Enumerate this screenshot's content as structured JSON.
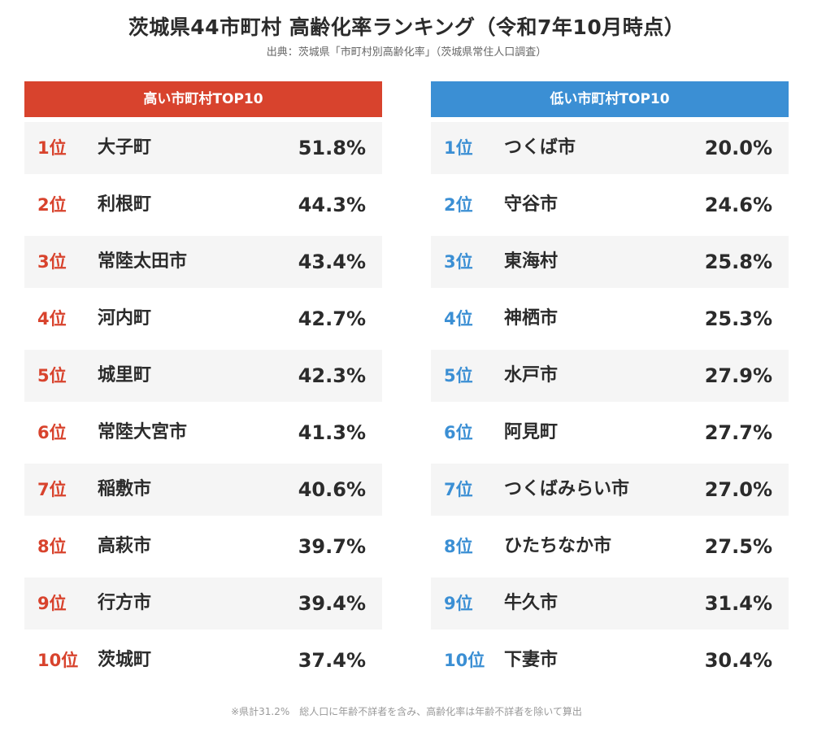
{
  "title": "茨城県44市町村 高齢化率ランキング（令和7年10月時点）",
  "source": "出典：茨城県「市町村別高齢化率」（茨城県常住人口調査）",
  "colors": {
    "high": "#d8432d",
    "low": "#3b8fd4"
  },
  "high": {
    "header": "高い市町村TOP10",
    "rows": [
      {
        "rank": "1位",
        "name": "大子町",
        "value": "51.8%"
      },
      {
        "rank": "2位",
        "name": "利根町",
        "value": "44.3%"
      },
      {
        "rank": "3位",
        "name": "常陸太田市",
        "value": "43.4%"
      },
      {
        "rank": "4位",
        "name": "河内町",
        "value": "42.7%"
      },
      {
        "rank": "5位",
        "name": "城里町",
        "value": "42.3%"
      },
      {
        "rank": "6位",
        "name": "常陸大宮市",
        "value": "41.3%"
      },
      {
        "rank": "7位",
        "name": "稲敷市",
        "value": "40.6%"
      },
      {
        "rank": "8位",
        "name": "高萩市",
        "value": "39.7%"
      },
      {
        "rank": "9位",
        "name": "行方市",
        "value": "39.4%"
      },
      {
        "rank": "10位",
        "name": "茨城町",
        "value": "37.4%"
      }
    ]
  },
  "low": {
    "header": "低い市町村TOP10",
    "rows": [
      {
        "rank": "1位",
        "name": "つくば市",
        "value": "20.0%"
      },
      {
        "rank": "2位",
        "name": "守谷市",
        "value": "24.6%"
      },
      {
        "rank": "3位",
        "name": "東海村",
        "value": "25.8%"
      },
      {
        "rank": "4位",
        "name": "神栖市",
        "value": "25.3%"
      },
      {
        "rank": "5位",
        "name": "水戸市",
        "value": "27.9%"
      },
      {
        "rank": "6位",
        "name": "阿見町",
        "value": "27.7%"
      },
      {
        "rank": "7位",
        "name": "つくばみらい市",
        "value": "27.0%"
      },
      {
        "rank": "8位",
        "name": "ひたちなか市",
        "value": "27.5%"
      },
      {
        "rank": "9位",
        "name": "牛久市",
        "value": "31.4%"
      },
      {
        "rank": "10位",
        "name": "下妻市",
        "value": "30.4%"
      }
    ]
  },
  "footnote": "※県計31.2%　総人口に年齢不詳者を含み、高齢化率は年齢不詳者を除いて算出"
}
